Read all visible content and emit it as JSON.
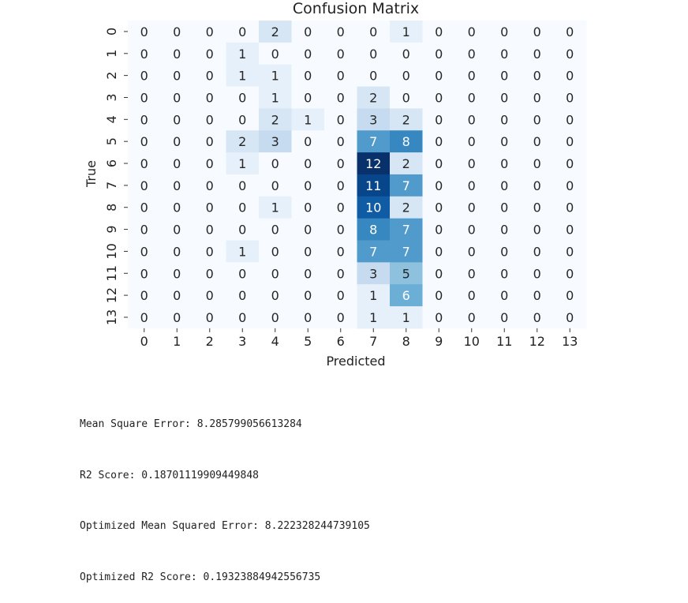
{
  "chart_data": {
    "type": "heatmap",
    "title": "Confusion Matrix",
    "xlabel": "Predicted",
    "ylabel": "True",
    "x_ticks": [
      "0",
      "1",
      "2",
      "3",
      "4",
      "5",
      "6",
      "7",
      "8",
      "9",
      "10",
      "11",
      "12",
      "13"
    ],
    "y_ticks": [
      "0",
      "1",
      "2",
      "3",
      "4",
      "5",
      "6",
      "7",
      "8",
      "9",
      "10",
      "11",
      "12",
      "13"
    ],
    "colormap": "Blues",
    "color_range": [
      0,
      12
    ],
    "colorbar": false,
    "annotations": true,
    "values": [
      [
        0,
        0,
        0,
        0,
        2,
        0,
        0,
        0,
        1,
        0,
        0,
        0,
        0,
        0
      ],
      [
        0,
        0,
        0,
        1,
        0,
        0,
        0,
        0,
        0,
        0,
        0,
        0,
        0,
        0
      ],
      [
        0,
        0,
        0,
        1,
        1,
        0,
        0,
        0,
        0,
        0,
        0,
        0,
        0,
        0
      ],
      [
        0,
        0,
        0,
        0,
        1,
        0,
        0,
        2,
        0,
        0,
        0,
        0,
        0,
        0
      ],
      [
        0,
        0,
        0,
        0,
        2,
        1,
        0,
        3,
        2,
        0,
        0,
        0,
        0,
        0
      ],
      [
        0,
        0,
        0,
        2,
        3,
        0,
        0,
        7,
        8,
        0,
        0,
        0,
        0,
        0
      ],
      [
        0,
        0,
        0,
        1,
        0,
        0,
        0,
        12,
        2,
        0,
        0,
        0,
        0,
        0
      ],
      [
        0,
        0,
        0,
        0,
        0,
        0,
        0,
        11,
        7,
        0,
        0,
        0,
        0,
        0
      ],
      [
        0,
        0,
        0,
        0,
        1,
        0,
        0,
        10,
        2,
        0,
        0,
        0,
        0,
        0
      ],
      [
        0,
        0,
        0,
        0,
        0,
        0,
        0,
        8,
        7,
        0,
        0,
        0,
        0,
        0
      ],
      [
        0,
        0,
        0,
        1,
        0,
        0,
        0,
        7,
        7,
        0,
        0,
        0,
        0,
        0
      ],
      [
        0,
        0,
        0,
        0,
        0,
        0,
        0,
        3,
        5,
        0,
        0,
        0,
        0,
        0
      ],
      [
        0,
        0,
        0,
        0,
        0,
        0,
        0,
        1,
        6,
        0,
        0,
        0,
        0,
        0
      ],
      [
        0,
        0,
        0,
        0,
        0,
        0,
        0,
        1,
        1,
        0,
        0,
        0,
        0,
        0
      ]
    ]
  },
  "console": {
    "lines": [
      "Mean Square Error: 8.285799056613284",
      "R2 Score: 0.18701119909449848",
      "Optimized Mean Squared Error: 8.222328244739105",
      "Optimized R2 Score: 0.19323884942556735"
    ]
  }
}
